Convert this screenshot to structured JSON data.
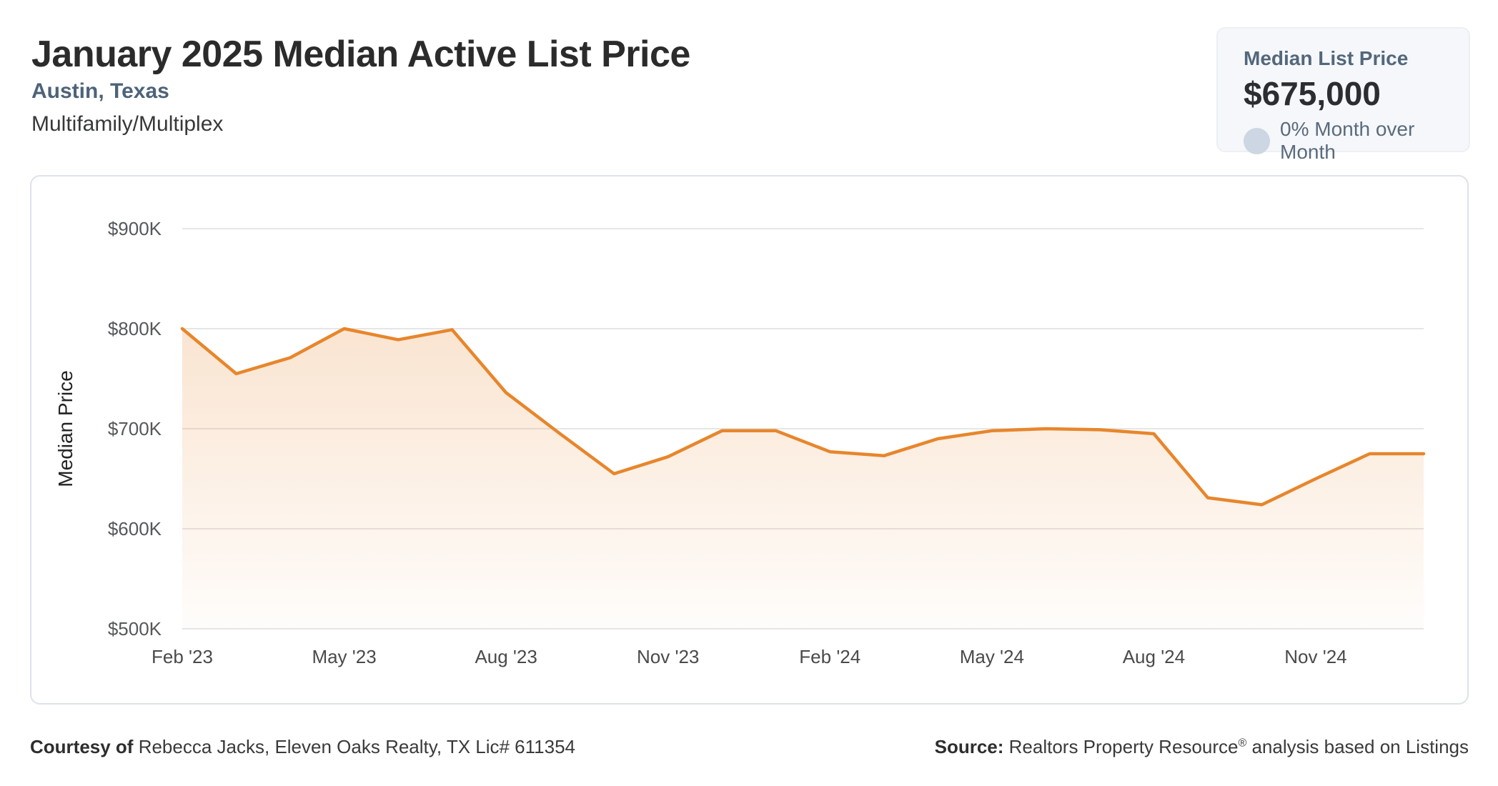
{
  "header": {
    "title": "January 2025 Median Active List Price",
    "location": "Austin, Texas",
    "property_type": "Multifamily/Multiplex"
  },
  "stat_card": {
    "label": "Median List Price",
    "value": "$675,000",
    "change_text": "0% Month over Month",
    "change_indicator": "neutral-circle",
    "bg_color": "#f5f7fa",
    "dot_color": "#ccd7e3"
  },
  "chart_data": {
    "type": "area",
    "title": "",
    "xlabel": "",
    "ylabel": "Median Price",
    "x": [
      "Feb '23",
      "Mar '23",
      "Apr '23",
      "May '23",
      "Jun '23",
      "Jul '23",
      "Aug '23",
      "Sep '23",
      "Oct '23",
      "Nov '23",
      "Dec '23",
      "Jan '24",
      "Feb '24",
      "Mar '24",
      "Apr '24",
      "May '24",
      "Jun '24",
      "Jul '24",
      "Aug '24",
      "Sep '24",
      "Oct '24",
      "Nov '24",
      "Dec '24",
      "Jan '25"
    ],
    "series": [
      {
        "name": "Median Price",
        "values": [
          800000,
          755000,
          771000,
          800000,
          789000,
          799000,
          736000,
          695000,
          655000,
          672000,
          698000,
          698000,
          677000,
          673000,
          690000,
          698000,
          700000,
          699000,
          695000,
          631000,
          624000,
          650000,
          675000,
          675000
        ]
      }
    ],
    "ylim": [
      500000,
      900000
    ],
    "y_ticks": [
      {
        "value": 900000,
        "label": "$900K"
      },
      {
        "value": 800000,
        "label": "$800K"
      },
      {
        "value": 700000,
        "label": "$700K"
      },
      {
        "value": 600000,
        "label": "$600K"
      },
      {
        "value": 500000,
        "label": "$500K"
      }
    ],
    "x_tick_every": 3,
    "grid": true,
    "legend": "none",
    "line_color": "#e7862c",
    "fill_color": "#e7862c",
    "grid_color": "#e6e6e6",
    "tick_color": "#55585c",
    "axis_title_color": "#232323"
  },
  "footer": {
    "courtesy_label": "Courtesy of",
    "courtesy_text": " Rebecca Jacks, Eleven Oaks Realty, TX Lic# 611354",
    "source_label": "Source:",
    "source_text_1": " Realtors Property Resource",
    "source_sup": "®",
    "source_text_2": " analysis based on Listings"
  }
}
